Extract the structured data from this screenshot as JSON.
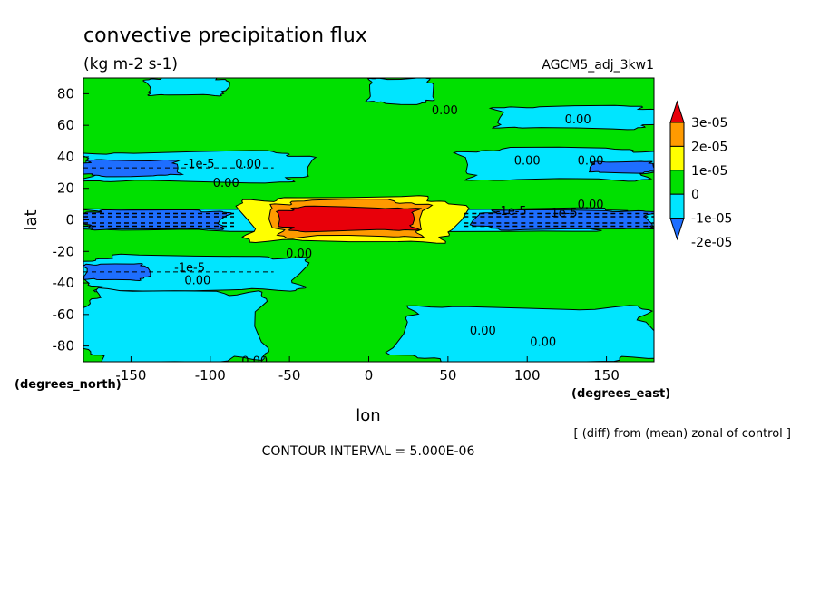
{
  "chart_data": {
    "type": "heatmap",
    "title": "convective precipitation flux",
    "units": "(kg m-2 s-1)",
    "dataset": "AGCM5_adj_3kw1",
    "xlabel": "lon",
    "ylabel": "lat",
    "x_units": "(degrees_east)",
    "y_units": "(degrees_north)",
    "xlim": [
      -180,
      180
    ],
    "ylim": [
      -90,
      90
    ],
    "x_ticks": [
      -150,
      -100,
      -50,
      0,
      50,
      100,
      150
    ],
    "x_tick_labels": [
      "-150",
      "-100",
      "-50",
      "0",
      "50",
      "100",
      "150"
    ],
    "y_ticks": [
      80,
      60,
      40,
      20,
      0,
      -20,
      -40,
      -60,
      -80
    ],
    "y_tick_labels": [
      "80",
      "60",
      "40",
      "20",
      "0",
      "-20",
      "-40",
      "-60",
      "-80"
    ],
    "subtitle_note": "[ (diff) from (mean) zonal of control ]",
    "contour_interval": "CONTOUR INTERVAL = 5.000E-06",
    "colorbar": {
      "levels": [
        -2e-05,
        -1e-05,
        0,
        1e-05,
        2e-05,
        3e-05
      ],
      "labels": [
        "3e-05",
        "2e-05",
        "1e-05",
        "0",
        "-1e-05",
        "-2e-05"
      ],
      "colors": [
        "#1e6eff",
        "#00e5ff",
        "#00e000",
        "#ffff00",
        "#ff9a00",
        "#e8000a"
      ]
    },
    "contour_labels": [
      {
        "text": "0.00",
        "lon": 48,
        "lat": 70
      },
      {
        "text": "0.00",
        "lon": 132,
        "lat": 64
      },
      {
        "text": "0.00",
        "lon": 100,
        "lat": 38
      },
      {
        "text": "0.00",
        "lon": 140,
        "lat": 38
      },
      {
        "text": "-1e-5",
        "lon": -107,
        "lat": 36
      },
      {
        "text": "0.00",
        "lon": -76,
        "lat": 36
      },
      {
        "text": "0.00",
        "lon": -90,
        "lat": 24
      },
      {
        "text": "0.00",
        "lon": 140,
        "lat": 10
      },
      {
        "text": "-1e-5",
        "lon": 90,
        "lat": 6
      },
      {
        "text": "-1e-5",
        "lon": 122,
        "lat": 5
      },
      {
        "text": "0.00",
        "lon": -44,
        "lat": -21
      },
      {
        "text": "-1e-5",
        "lon": -113,
        "lat": -30
      },
      {
        "text": "0.00",
        "lon": -108,
        "lat": -38
      },
      {
        "text": "0.00",
        "lon": 72,
        "lat": -70
      },
      {
        "text": "0.00",
        "lon": 110,
        "lat": -77
      },
      {
        "text": "0.00",
        "lon": -72,
        "lat": -89
      }
    ],
    "fields": [
      {
        "level": -1e-05,
        "color": "#00e5ff",
        "regions": [
          {
            "lon": [
              -180,
              180
            ],
            "lat": [
              -7,
              7
            ]
          },
          {
            "lon": [
              -180,
              -40
            ],
            "lat": [
              24,
              43
            ]
          },
          {
            "lon": [
              60,
              180
            ],
            "lat": [
              25,
              45
            ]
          },
          {
            "lon": [
              -180,
              -40
            ],
            "lat": [
              -45,
              -23
            ]
          },
          {
            "lon": [
              -180,
              -65
            ],
            "lat": [
              -90,
              -45
            ]
          },
          {
            "lon": [
              20,
              180
            ],
            "lat": [
              -90,
              -55
            ]
          },
          {
            "lon": [
              0,
              40
            ],
            "lat": [
              74,
              90
            ]
          },
          {
            "lon": [
              80,
              180
            ],
            "lat": [
              58,
              72
            ]
          },
          {
            "lon": [
              -140,
              -90
            ],
            "lat": [
              79,
              90
            ]
          }
        ]
      },
      {
        "level": -2e-05,
        "color": "#1e6eff",
        "regions": [
          {
            "lon": [
              -180,
              -90
            ],
            "lat": [
              -6,
              6
            ]
          },
          {
            "lon": [
              70,
              180
            ],
            "lat": [
              -6,
              6
            ]
          },
          {
            "lon": [
              -180,
              -120
            ],
            "lat": [
              28,
              38
            ]
          },
          {
            "lon": [
              140,
              180
            ],
            "lat": [
              30,
              37
            ]
          },
          {
            "lon": [
              -180,
              -140
            ],
            "lat": [
              -38,
              -28
            ]
          }
        ]
      },
      {
        "level": 1e-05,
        "color": "#ffff00",
        "regions": [
          {
            "lon": [
              -80,
              55
            ],
            "lat": [
              -14,
              14
            ]
          }
        ]
      },
      {
        "level": 2e-05,
        "color": "#ff9a00",
        "regions": [
          {
            "lon": [
              -60,
              35
            ],
            "lat": [
              -11,
              12
            ]
          }
        ]
      },
      {
        "level": 3e-05,
        "color": "#e8000a",
        "regions": [
          {
            "lon": [
              -55,
              30
            ],
            "lat": [
              -7,
              8
            ]
          }
        ]
      }
    ],
    "background_color": "#00e000"
  }
}
